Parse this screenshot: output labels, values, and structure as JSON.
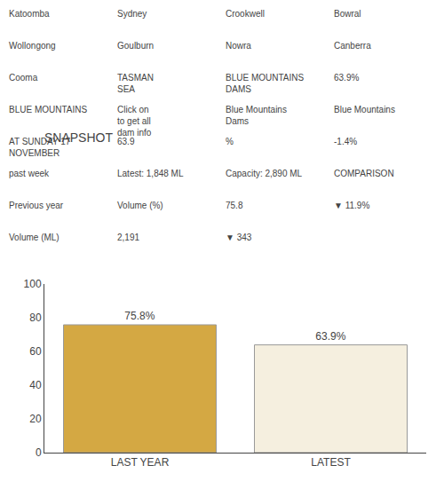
{
  "chart_data": {
    "type": "bar",
    "title": "SNAPSHOT",
    "categories": [
      "LAST YEAR",
      "LATEST"
    ],
    "values": [
      75.8,
      63.9
    ],
    "value_labels": [
      "75.8%",
      "63.9%"
    ],
    "data_labels": true,
    "colors": [
      "#d4a843",
      "#f5efdf"
    ],
    "ylim": [
      0,
      100
    ],
    "yticks": [
      0,
      20,
      40,
      60,
      80,
      100
    ],
    "grid": false,
    "annotations": [
      "Katoomba",
      "Sydney",
      "Crookwell",
      "Bowral",
      "Wollongong",
      "Goulburn",
      "Nowra",
      "Canberra",
      "Cooma",
      "TASMAN\nSEA",
      "BLUE MOUNTAINS\nDAMS",
      "63.9%",
      "BLUE MOUNTAINS",
      "Click on\nto get all\ndam info",
      "Blue Mountains\nDams",
      "Blue Mountains",
      "AT SUNDAY 17\nNOVEMBER",
      "63.9",
      "%",
      "-1.4%",
      "past week",
      "Latest: 1,848 ML",
      "Capacity: 2,890 ML",
      "COMPARISON",
      "Previous year",
      "Volume (%)",
      "75.8",
      "▼ 11.9%",
      "Volume (ML)",
      "2,191",
      "▼ 343"
    ]
  }
}
